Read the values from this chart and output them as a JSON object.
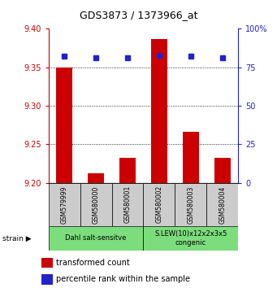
{
  "title": "GDS3873 / 1373966_at",
  "samples": [
    "GSM579999",
    "GSM580000",
    "GSM580001",
    "GSM580002",
    "GSM580003",
    "GSM580004"
  ],
  "transformed_counts": [
    9.35,
    9.212,
    9.232,
    9.387,
    9.266,
    9.232
  ],
  "percentile_ranks": [
    82,
    81,
    81,
    83,
    82,
    81
  ],
  "base_value": 9.2,
  "ylim_left": [
    9.2,
    9.4
  ],
  "ylim_right": [
    0,
    100
  ],
  "yticks_left": [
    9.2,
    9.25,
    9.3,
    9.35,
    9.4
  ],
  "yticks_right": [
    0,
    25,
    50,
    75,
    100
  ],
  "grid_lines": [
    9.25,
    9.3,
    9.35
  ],
  "groups": [
    {
      "label": "Dahl salt-sensitve",
      "start": 0,
      "end": 3,
      "color": "#7cdd7c"
    },
    {
      "label": "S.LEW(10)x12x2x3x5\ncongenic",
      "start": 3,
      "end": 6,
      "color": "#7cdd7c"
    }
  ],
  "bar_color": "#cc0000",
  "dot_color": "#2222cc",
  "bar_width": 0.5,
  "ylabel_left_color": "#cc0000",
  "ylabel_right_color": "#2222cc",
  "background_color": "#ffffff",
  "sample_box_color": "#cccccc",
  "legend_bar_label": "transformed count",
  "legend_dot_label": "percentile rank within the sample"
}
